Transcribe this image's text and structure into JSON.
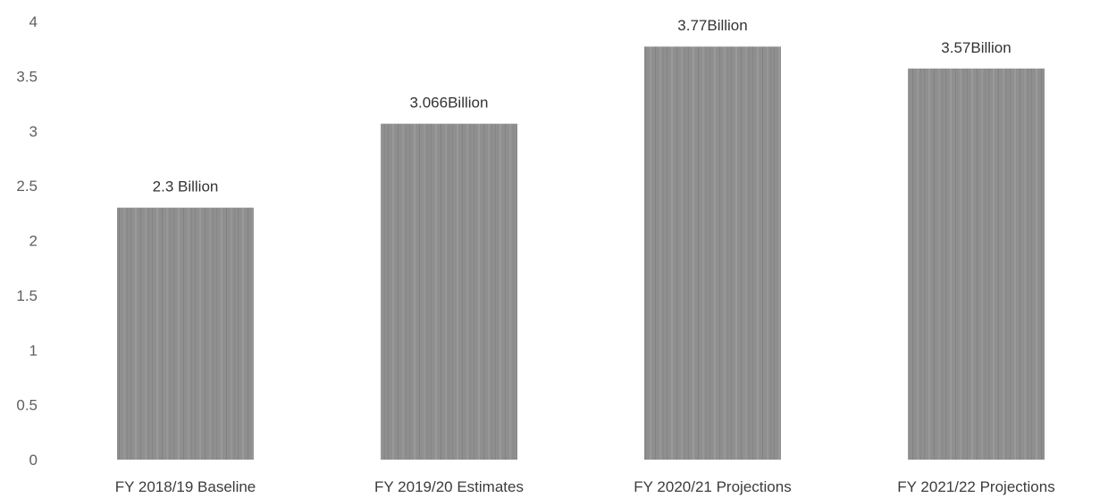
{
  "chart_data": {
    "type": "bar",
    "title": "",
    "xlabel": "",
    "ylabel": "",
    "categories": [
      "FY 2018/19 Baseline",
      "FY 2019/20 Estimates",
      "FY 2020/21 Projections",
      "FY 2021/22 Projections"
    ],
    "values": [
      2.3,
      3.066,
      3.77,
      3.57
    ],
    "data_labels": [
      "2.3 Billion",
      "3.066Billion",
      "3.77Billion",
      "3.57Billion"
    ],
    "ylim": [
      0,
      4
    ],
    "yticks": [
      "0",
      "0.5",
      "1",
      "1.5",
      "2",
      "2.5",
      "3",
      "3.5",
      "4"
    ],
    "grid": false,
    "legend": "none",
    "bar_color": "#8f8f8f"
  }
}
